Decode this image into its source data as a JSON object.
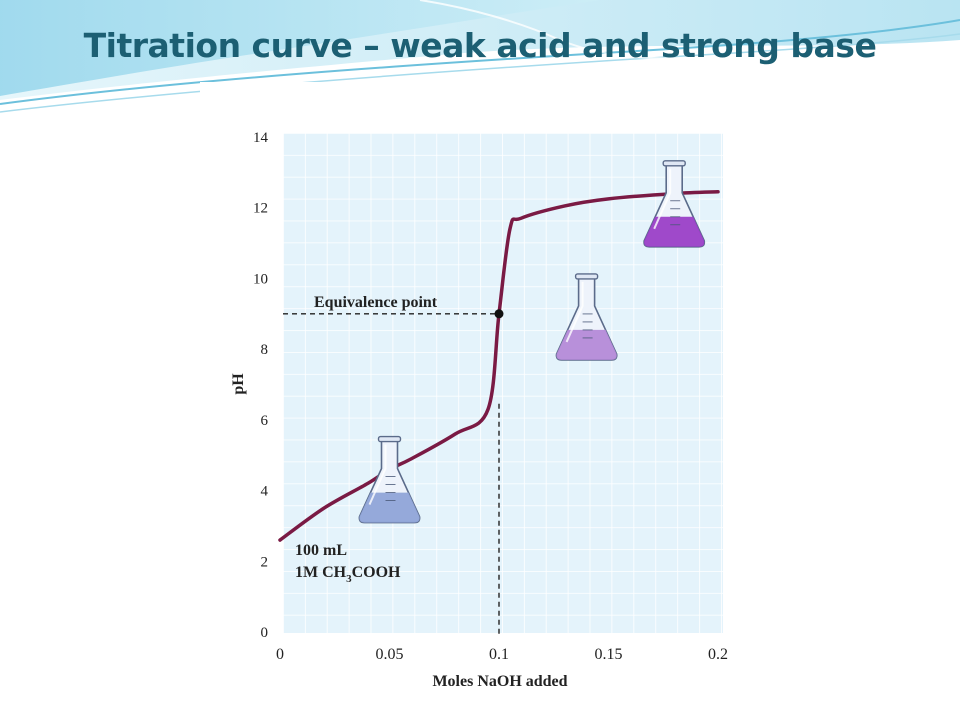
{
  "slide": {
    "title": "Titration curve – weak acid and strong base"
  },
  "chart_data": {
    "type": "line",
    "title": "",
    "xlabel": "Moles NaOH added",
    "ylabel": "pH",
    "xlim": [
      0,
      0.2
    ],
    "ylim": [
      0,
      14
    ],
    "x_ticks": [
      "0",
      "0.05",
      "0.1",
      "0.15",
      "0.2"
    ],
    "y_ticks": [
      "0",
      "2",
      "4",
      "6",
      "8",
      "10",
      "12",
      "14"
    ],
    "grid": true,
    "series": [
      {
        "color": "#7a1a44",
        "x": [
          0.0,
          0.02,
          0.04,
          0.05,
          0.06,
          0.08,
          0.095,
          0.1,
          0.105,
          0.11,
          0.13,
          0.15,
          0.18,
          0.2
        ],
        "y": [
          2.6,
          3.5,
          4.2,
          4.6,
          4.9,
          5.6,
          6.3,
          9.0,
          11.4,
          11.7,
          12.05,
          12.25,
          12.4,
          12.45
        ]
      }
    ],
    "equivalence_point": {
      "label": "Equivalence point",
      "x": 0.1,
      "y": 9.0
    },
    "annotations": {
      "sample_volume": "100 mL",
      "sample_conc": "1M CH",
      "sample_sub": "3",
      "sample_rest": "COOH"
    },
    "flasks": [
      {
        "x": 0.05,
        "y": 4.0,
        "liquid_color": "#8fa4d8"
      },
      {
        "x": 0.14,
        "y": 8.6,
        "liquid_color": "#b48ad8"
      },
      {
        "x": 0.18,
        "y": 11.8,
        "liquid_color": "#9a3fc7"
      }
    ]
  }
}
